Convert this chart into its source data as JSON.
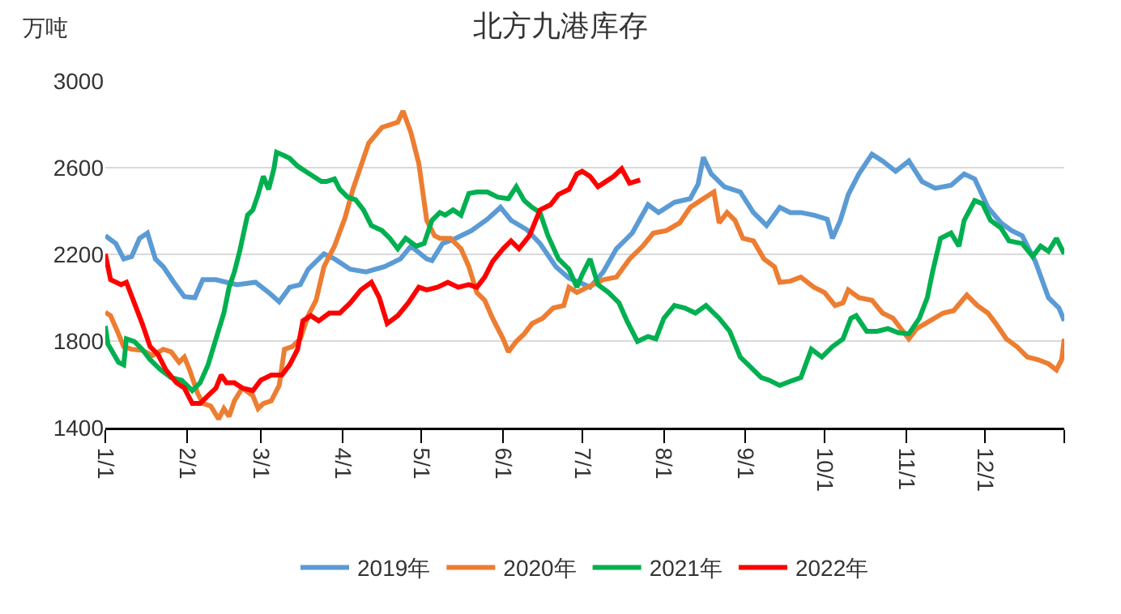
{
  "chart_data": {
    "type": "line",
    "title": "北方九港库存",
    "ylabel": "万吨",
    "xlim": [
      "--01-01",
      "--12-31"
    ],
    "xticks": [
      {
        "value": "--01-01",
        "label": "1/1"
      },
      {
        "value": "--02-01",
        "label": "2/1"
      },
      {
        "value": "--03-01",
        "label": "3/1"
      },
      {
        "value": "--04-01",
        "label": "4/1"
      },
      {
        "value": "--05-01",
        "label": "5/1"
      },
      {
        "value": "--06-01",
        "label": "6/1"
      },
      {
        "value": "--07-01",
        "label": "7/1"
      },
      {
        "value": "--08-01",
        "label": "8/1"
      },
      {
        "value": "--09-01",
        "label": "9/1"
      },
      {
        "value": "--10-01",
        "label": "10/1"
      },
      {
        "value": "--11-01",
        "label": "11/1"
      },
      {
        "value": "--12-01",
        "label": "12/1"
      },
      {
        "value": "--12-31",
        "label": null
      }
    ],
    "ylim": [
      1400,
      3000
    ],
    "yticks": [
      1400,
      1800,
      2200,
      2600,
      3000
    ],
    "grid": "y",
    "legend": "bottom",
    "marker": "none",
    "line_style": "solid",
    "series": [
      {
        "name": "2019年",
        "color": "#5b9bd5",
        "x": [
          "--01-01",
          "--01-05",
          "--01-08",
          "--01-11",
          "--01-14",
          "--01-17",
          "--01-20",
          "--01-23",
          "--01-27",
          "--01-31",
          "--02-04",
          "--02-07",
          "--02-12",
          "--02-16",
          "--02-20",
          "--02-27",
          "--03-04",
          "--03-08",
          "--03-12",
          "--03-16",
          "--03-19",
          "--03-25",
          "--03-29",
          "--04-04",
          "--04-10",
          "--04-17",
          "--04-23",
          "--04-27",
          "--05-03",
          "--05-05",
          "--05-09",
          "--05-14",
          "--05-20",
          "--05-26",
          "--05-31",
          "--06-04",
          "--06-10",
          "--06-15",
          "--06-21",
          "--06-26",
          "--06-30",
          "--07-04",
          "--07-09",
          "--07-14",
          "--07-20",
          "--07-26",
          "--07-30",
          "--08-05",
          "--08-11",
          "--08-14",
          "--08-16",
          "--08-19",
          "--08-24",
          "--08-30",
          "--09-04",
          "--09-09",
          "--09-14",
          "--09-18",
          "--09-22",
          "--09-27",
          "--10-02",
          "--10-04",
          "--10-07",
          "--10-10",
          "--10-14",
          "--10-19",
          "--10-23",
          "--10-28",
          "--11-02",
          "--11-07",
          "--11-12",
          "--11-18",
          "--11-23",
          "--11-27",
          "--12-02",
          "--12-07",
          "--12-11",
          "--12-15",
          "--12-20",
          "--12-25",
          "--12-29",
          "--12-31"
        ],
        "values": [
          2286,
          2250,
          2179,
          2190,
          2274,
          2298,
          2179,
          2143,
          2071,
          2005,
          2000,
          2083,
          2083,
          2071,
          2060,
          2071,
          2024,
          1981,
          2048,
          2060,
          2131,
          2202,
          2179,
          2131,
          2119,
          2143,
          2179,
          2238,
          2179,
          2171,
          2250,
          2274,
          2310,
          2362,
          2417,
          2357,
          2314,
          2250,
          2143,
          2090,
          2071,
          2048,
          2119,
          2226,
          2298,
          2429,
          2393,
          2440,
          2457,
          2524,
          2648,
          2571,
          2512,
          2488,
          2393,
          2333,
          2417,
          2393,
          2393,
          2381,
          2362,
          2274,
          2357,
          2476,
          2571,
          2662,
          2631,
          2583,
          2631,
          2536,
          2505,
          2519,
          2571,
          2548,
          2417,
          2345,
          2310,
          2286,
          2167,
          2000,
          1952,
          1893
        ]
      },
      {
        "name": "2020年",
        "color": "#ed7d31",
        "x": [
          "--01-01",
          "--01-03",
          "--01-06",
          "--01-08",
          "--01-11",
          "--01-15",
          "--01-19",
          "--01-23",
          "--01-26",
          "--01-29",
          "--01-31",
          "--02-02",
          "--02-05",
          "--02-07",
          "--02-10",
          "--02-13",
          "--02-15",
          "--02-17",
          "--02-19",
          "--02-22",
          "--02-26",
          "--02-28",
          "--03-02",
          "--03-05",
          "--03-08",
          "--03-10",
          "--03-13",
          "--03-16",
          "--03-19",
          "--03-22",
          "--03-25",
          "--03-29",
          "--04-02",
          "--04-05",
          "--04-08",
          "--04-11",
          "--04-16",
          "--04-19",
          "--04-22",
          "--04-24",
          "--04-27",
          "--04-30",
          "--05-03",
          "--05-06",
          "--05-08",
          "--05-12",
          "--05-16",
          "--05-19",
          "--05-22",
          "--05-25",
          "--05-28",
          "--06-01",
          "--06-03",
          "--06-06",
          "--06-09",
          "--06-12",
          "--06-16",
          "--06-20",
          "--06-24",
          "--06-26",
          "--06-29",
          "--07-03",
          "--07-09",
          "--07-14",
          "--07-19",
          "--07-24",
          "--07-28",
          "--08-02",
          "--08-07",
          "--08-11",
          "--08-16",
          "--08-20",
          "--08-22",
          "--08-25",
          "--08-28",
          "--08-31",
          "--09-04",
          "--09-08",
          "--09-12",
          "--09-14",
          "--09-18",
          "--09-22",
          "--09-27",
          "--10-01",
          "--10-05",
          "--10-08",
          "--10-10",
          "--10-14",
          "--10-19",
          "--10-23",
          "--10-27",
          "--10-30",
          "--11-02",
          "--11-05",
          "--11-10",
          "--11-15",
          "--11-19",
          "--11-24",
          "--11-28",
          "--12-02",
          "--12-05",
          "--12-09",
          "--12-13",
          "--12-17",
          "--12-21",
          "--12-25",
          "--12-28",
          "--12-30",
          "--12-31"
        ],
        "values": [
          1933,
          1917,
          1833,
          1774,
          1762,
          1757,
          1733,
          1762,
          1750,
          1702,
          1726,
          1667,
          1560,
          1512,
          1500,
          1440,
          1488,
          1452,
          1524,
          1583,
          1548,
          1488,
          1512,
          1524,
          1595,
          1762,
          1774,
          1810,
          1917,
          1988,
          2143,
          2238,
          2369,
          2500,
          2607,
          2714,
          2786,
          2798,
          2810,
          2862,
          2762,
          2619,
          2357,
          2286,
          2274,
          2274,
          2226,
          2143,
          2024,
          1988,
          1905,
          1810,
          1750,
          1798,
          1833,
          1881,
          1905,
          1952,
          1964,
          2048,
          2024,
          2048,
          2083,
          2095,
          2179,
          2238,
          2298,
          2310,
          2345,
          2417,
          2457,
          2488,
          2345,
          2393,
          2357,
          2274,
          2262,
          2179,
          2143,
          2071,
          2076,
          2095,
          2048,
          2024,
          1964,
          1976,
          2036,
          2000,
          1988,
          1929,
          1905,
          1857,
          1810,
          1857,
          1893,
          1929,
          1940,
          2012,
          1964,
          1929,
          1881,
          1810,
          1774,
          1726,
          1714,
          1695,
          1667,
          1714,
          1810
        ]
      },
      {
        "name": "2021年",
        "color": "#00b050",
        "x": [
          "--01-01",
          "--01-02",
          "--01-06",
          "--01-08",
          "--01-09",
          "--01-12",
          "--01-15",
          "--01-18",
          "--01-22",
          "--01-26",
          "--01-30",
          "--02-03",
          "--02-06",
          "--02-09",
          "--02-12",
          "--02-15",
          "--02-17",
          "--02-19",
          "--02-21",
          "--02-24",
          "--02-26",
          "--02-28",
          "--03-02",
          "--03-04",
          "--03-06",
          "--03-07",
          "--03-10",
          "--03-12",
          "--03-15",
          "--03-18",
          "--03-21",
          "--03-24",
          "--03-26",
          "--03-29",
          "--03-31",
          "--04-03",
          "--04-06",
          "--04-09",
          "--04-12",
          "--04-16",
          "--04-19",
          "--04-22",
          "--04-25",
          "--04-29",
          "--05-02",
          "--05-05",
          "--05-08",
          "--05-10",
          "--05-13",
          "--05-16",
          "--05-19",
          "--05-22",
          "--05-26",
          "--05-30",
          "--06-03",
          "--06-06",
          "--06-09",
          "--06-12",
          "--06-15",
          "--06-18",
          "--06-22",
          "--06-26",
          "--06-29",
          "--07-01",
          "--07-04",
          "--07-07",
          "--07-11",
          "--07-15",
          "--07-18",
          "--07-22",
          "--07-26",
          "--07-29",
          "--08-01",
          "--08-05",
          "--08-09",
          "--08-13",
          "--08-17",
          "--08-22",
          "--08-26",
          "--08-30",
          "--09-03",
          "--09-07",
          "--09-10",
          "--09-14",
          "--09-18",
          "--09-22",
          "--09-26",
          "--09-30",
          "--10-04",
          "--10-08",
          "--10-11",
          "--10-13",
          "--10-17",
          "--10-21",
          "--10-25",
          "--10-29",
          "--11-02",
          "--11-06",
          "--11-09",
          "--11-11",
          "--11-14",
          "--11-18",
          "--11-21",
          "--11-23",
          "--11-27",
          "--11-30",
          "--12-03",
          "--12-07",
          "--12-10",
          "--12-15",
          "--12-19",
          "--12-22",
          "--12-25",
          "--12-28",
          "--12-30",
          "--12-31"
        ],
        "values": [
          1869,
          1786,
          1702,
          1690,
          1810,
          1798,
          1762,
          1714,
          1667,
          1631,
          1619,
          1571,
          1607,
          1690,
          1810,
          1929,
          2048,
          2119,
          2214,
          2381,
          2405,
          2476,
          2560,
          2500,
          2595,
          2671,
          2655,
          2643,
          2607,
          2583,
          2560,
          2536,
          2536,
          2548,
          2500,
          2464,
          2452,
          2405,
          2333,
          2310,
          2274,
          2226,
          2274,
          2238,
          2250,
          2357,
          2393,
          2381,
          2405,
          2381,
          2481,
          2488,
          2488,
          2464,
          2457,
          2512,
          2448,
          2417,
          2393,
          2286,
          2179,
          2131,
          2048,
          2107,
          2179,
          2060,
          2024,
          1976,
          1893,
          1798,
          1821,
          1810,
          1905,
          1964,
          1952,
          1929,
          1964,
          1905,
          1845,
          1726,
          1679,
          1631,
          1619,
          1595,
          1614,
          1631,
          1762,
          1726,
          1774,
          1810,
          1905,
          1917,
          1845,
          1845,
          1857,
          1838,
          1833,
          1905,
          2000,
          2119,
          2274,
          2298,
          2238,
          2357,
          2448,
          2433,
          2357,
          2321,
          2262,
          2250,
          2190,
          2238,
          2214,
          2274,
          2226,
          2202
        ]
      },
      {
        "name": "2022年",
        "color": "#ff0000",
        "x": [
          "--01-01",
          "--01-03",
          "--01-07",
          "--01-09",
          "--01-12",
          "--01-15",
          "--01-18",
          "--01-21",
          "--01-24",
          "--01-28",
          "--01-31",
          "--02-03",
          "--02-06",
          "--02-09",
          "--02-12",
          "--02-14",
          "--02-16",
          "--02-19",
          "--02-22",
          "--02-26",
          "--03-01",
          "--03-05",
          "--03-09",
          "--03-12",
          "--03-15",
          "--03-17",
          "--03-20",
          "--03-23",
          "--03-27",
          "--03-31",
          "--04-04",
          "--04-08",
          "--04-12",
          "--04-15",
          "--04-18",
          "--04-22",
          "--04-26",
          "--04-30",
          "--05-03",
          "--05-07",
          "--05-11",
          "--05-15",
          "--05-19",
          "--05-22",
          "--05-25",
          "--05-28",
          "--06-01",
          "--06-04",
          "--06-07",
          "--06-11",
          "--06-15",
          "--06-19",
          "--06-22",
          "--06-26",
          "--06-29",
          "--07-01",
          "--07-04",
          "--07-07",
          "--07-10",
          "--07-13",
          "--07-16",
          "--07-19",
          "--07-23"
        ],
        "values": [
          2202,
          2083,
          2060,
          2071,
          1976,
          1881,
          1774,
          1738,
          1667,
          1607,
          1583,
          1512,
          1512,
          1548,
          1583,
          1643,
          1607,
          1607,
          1583,
          1571,
          1619,
          1643,
          1643,
          1690,
          1762,
          1893,
          1917,
          1893,
          1929,
          1929,
          1976,
          2036,
          2071,
          2000,
          1881,
          1917,
          1976,
          2048,
          2036,
          2048,
          2071,
          2048,
          2060,
          2048,
          2095,
          2167,
          2226,
          2262,
          2226,
          2286,
          2405,
          2429,
          2476,
          2500,
          2571,
          2583,
          2560,
          2512,
          2536,
          2560,
          2595,
          2528,
          2543
        ]
      }
    ]
  }
}
